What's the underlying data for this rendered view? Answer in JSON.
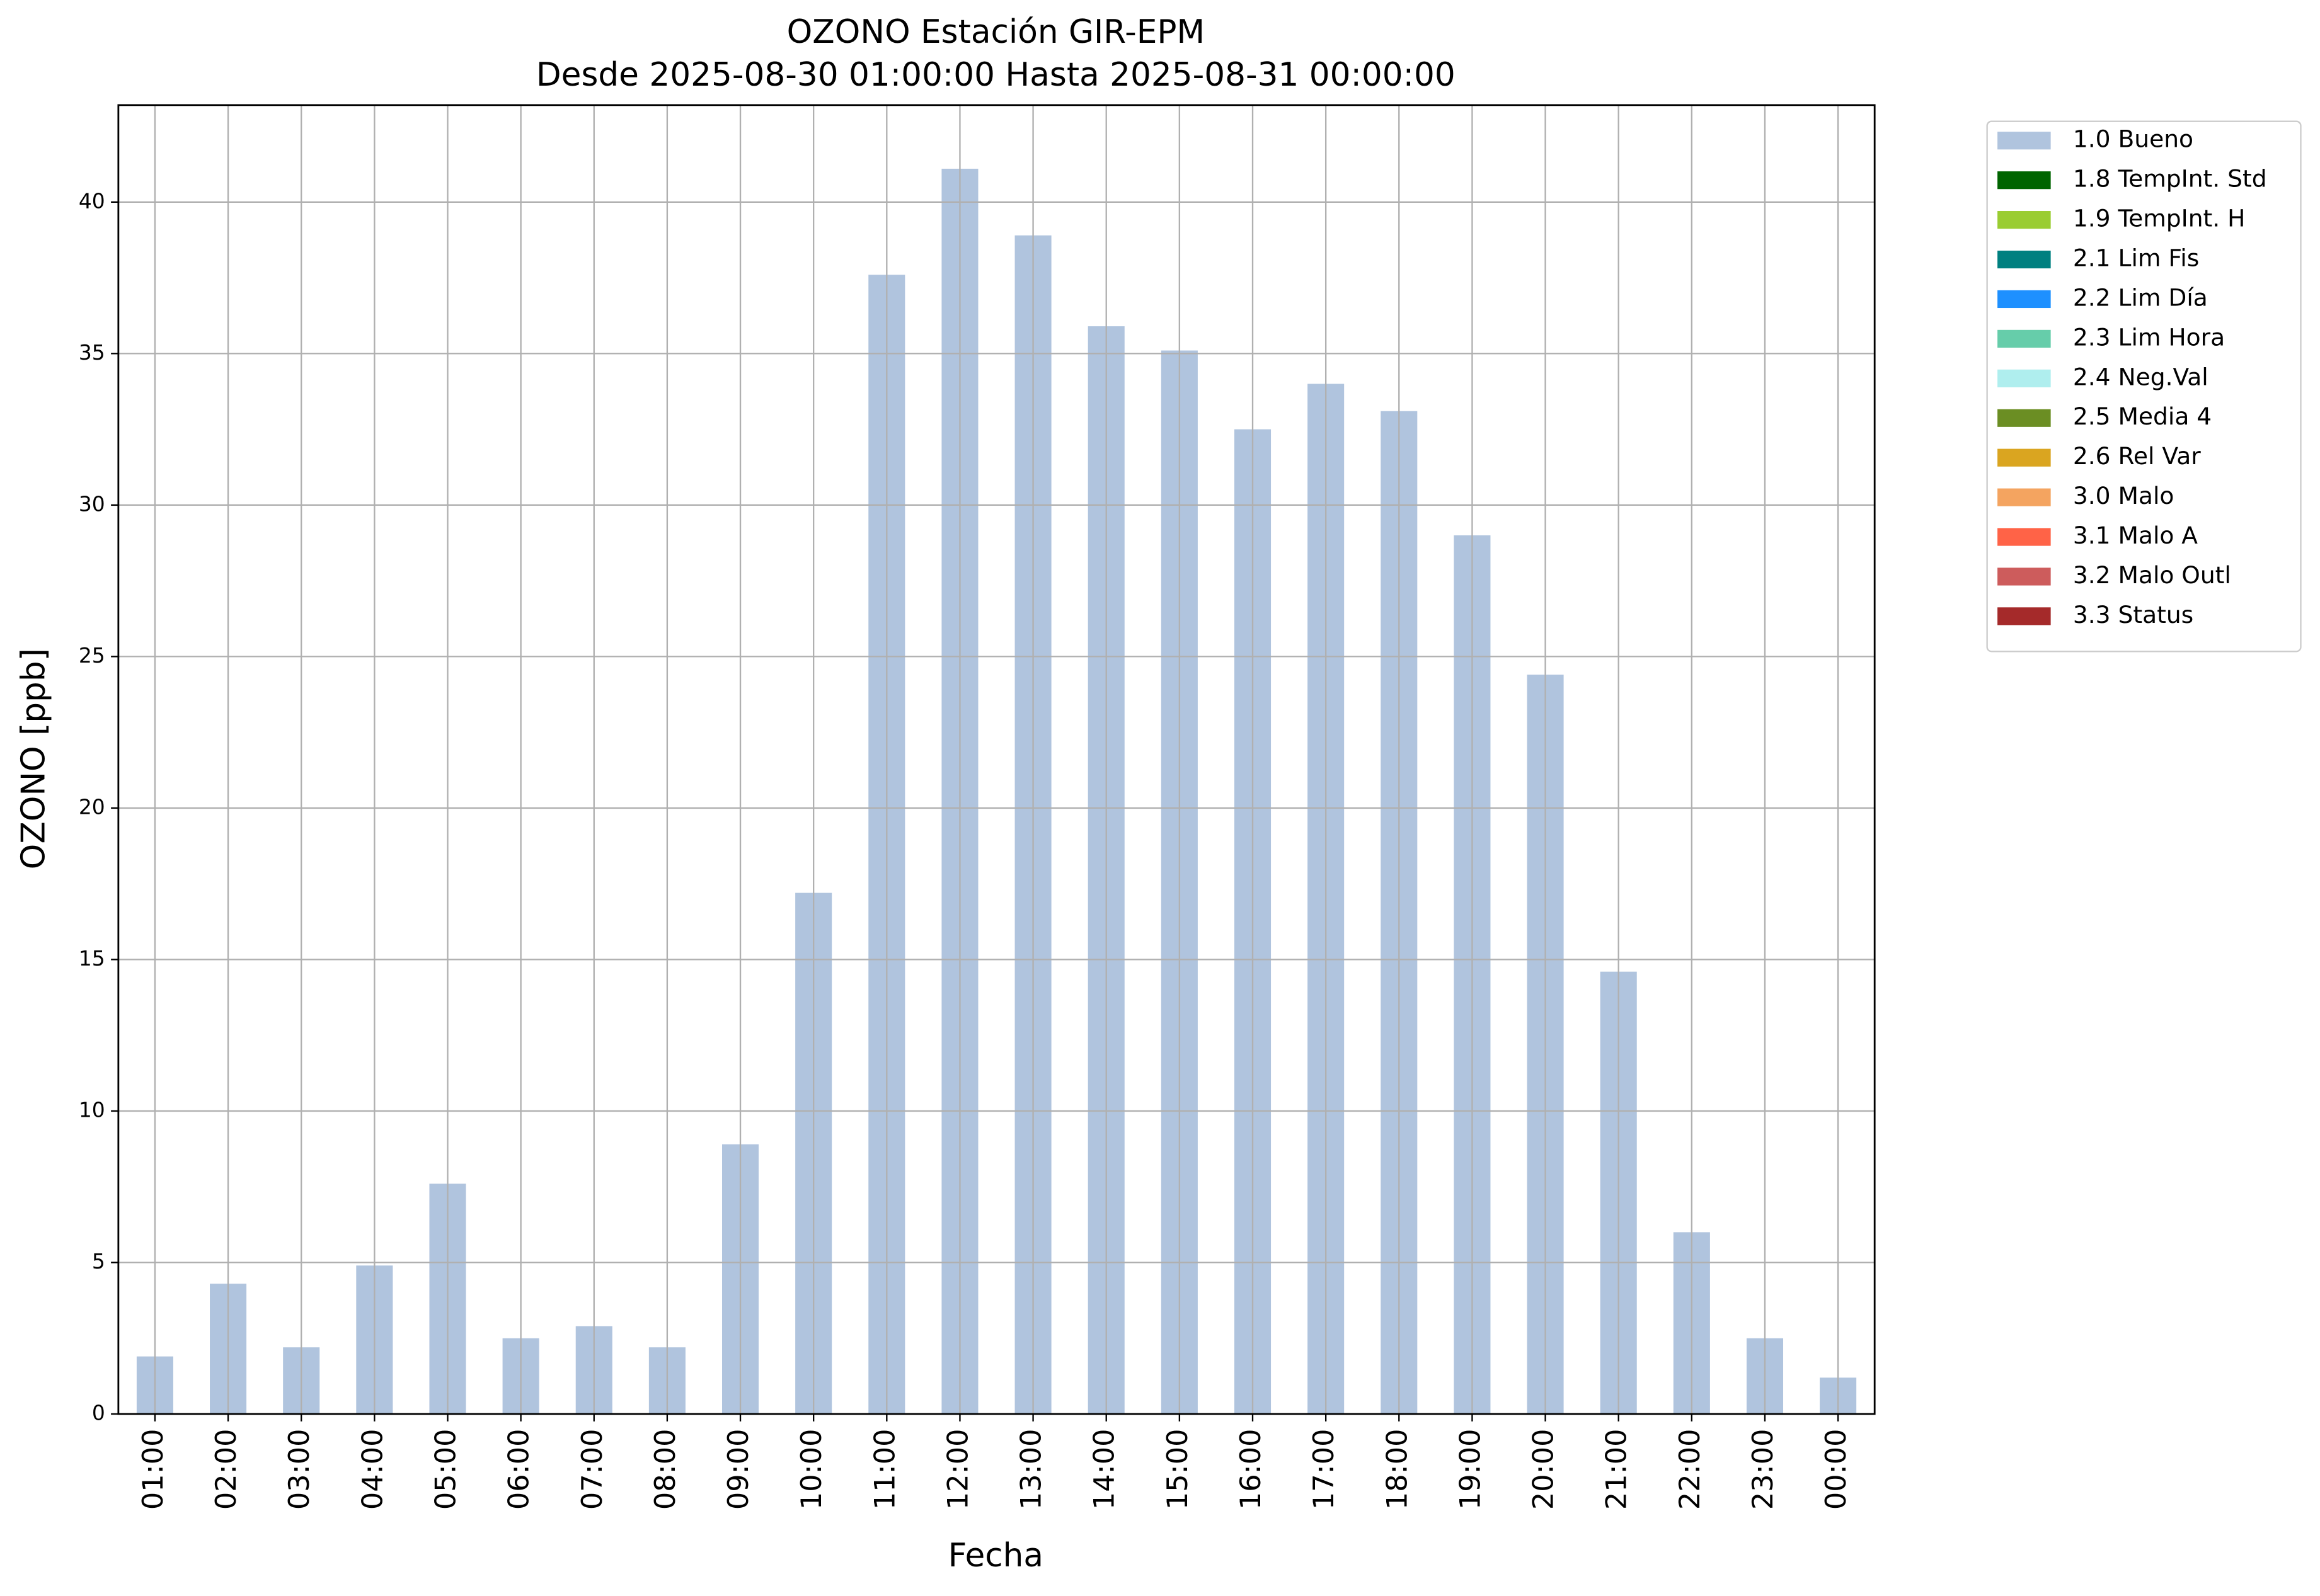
{
  "chart_data": {
    "type": "bar",
    "stacked": true,
    "title": "OZONO Estación GIR-EPM",
    "subtitle": "Desde 2025-08-30 01:00:00 Hasta 2025-08-31 00:00:00",
    "xlabel": "Fecha",
    "ylabel": "OZONO [ppb]",
    "categories": [
      "01:00",
      "02:00",
      "03:00",
      "04:00",
      "05:00",
      "06:00",
      "07:00",
      "08:00",
      "09:00",
      "10:00",
      "11:00",
      "12:00",
      "13:00",
      "14:00",
      "15:00",
      "16:00",
      "17:00",
      "18:00",
      "19:00",
      "20:00",
      "21:00",
      "22:00",
      "23:00",
      "00:00"
    ],
    "series": [
      {
        "name": "1.0 Bueno",
        "color": "#b0c4de",
        "values": [
          1.9,
          4.3,
          2.2,
          4.9,
          7.6,
          2.5,
          2.9,
          2.2,
          8.9,
          17.2,
          37.6,
          41.1,
          38.9,
          35.9,
          35.1,
          32.5,
          34.0,
          33.1,
          29.0,
          24.4,
          14.6,
          6.0,
          2.5,
          1.2
        ]
      },
      {
        "name": "1.8 TempInt. Std",
        "color": "#006400",
        "values": [
          null,
          null,
          null,
          null,
          null,
          null,
          null,
          null,
          null,
          null,
          null,
          null,
          null,
          null,
          null,
          null,
          null,
          null,
          null,
          null,
          null,
          null,
          null,
          null
        ]
      },
      {
        "name": "1.9 TempInt. H",
        "color": "#9acd32",
        "values": [
          null,
          null,
          null,
          null,
          null,
          null,
          null,
          null,
          null,
          null,
          null,
          null,
          null,
          null,
          null,
          null,
          null,
          null,
          null,
          null,
          null,
          null,
          null,
          null
        ]
      },
      {
        "name": "2.1 Lim Fis",
        "color": "#008080",
        "values": [
          null,
          null,
          null,
          null,
          null,
          null,
          null,
          null,
          null,
          null,
          null,
          null,
          null,
          null,
          null,
          null,
          null,
          null,
          null,
          null,
          null,
          null,
          null,
          null
        ]
      },
      {
        "name": "2.2 Lim Día",
        "color": "#1e90ff",
        "values": [
          null,
          null,
          null,
          null,
          null,
          null,
          null,
          null,
          null,
          null,
          null,
          null,
          null,
          null,
          null,
          null,
          null,
          null,
          null,
          null,
          null,
          null,
          null,
          null
        ]
      },
      {
        "name": "2.3 Lim Hora",
        "color": "#66cdaa",
        "values": [
          null,
          null,
          null,
          null,
          null,
          null,
          null,
          null,
          null,
          null,
          null,
          null,
          null,
          null,
          null,
          null,
          null,
          null,
          null,
          null,
          null,
          null,
          null,
          null
        ]
      },
      {
        "name": "2.4 Neg.Val",
        "color": "#afeeee",
        "values": [
          null,
          null,
          null,
          null,
          null,
          null,
          null,
          null,
          null,
          null,
          null,
          null,
          null,
          null,
          null,
          null,
          null,
          null,
          null,
          null,
          null,
          null,
          null,
          null
        ]
      },
      {
        "name": "2.5 Media 4",
        "color": "#6b8e23",
        "values": [
          null,
          null,
          null,
          null,
          null,
          null,
          null,
          null,
          null,
          null,
          null,
          null,
          null,
          null,
          null,
          null,
          null,
          null,
          null,
          null,
          null,
          null,
          null,
          null
        ]
      },
      {
        "name": "2.6 Rel Var",
        "color": "#daa520",
        "values": [
          null,
          null,
          null,
          null,
          null,
          null,
          null,
          null,
          null,
          null,
          null,
          null,
          null,
          null,
          null,
          null,
          null,
          null,
          null,
          null,
          null,
          null,
          null,
          null
        ]
      },
      {
        "name": "3.0 Malo",
        "color": "#f4a460",
        "values": [
          null,
          null,
          null,
          null,
          null,
          null,
          null,
          null,
          null,
          null,
          null,
          null,
          null,
          null,
          null,
          null,
          null,
          null,
          null,
          null,
          null,
          null,
          null,
          null
        ]
      },
      {
        "name": "3.1 Malo A",
        "color": "#ff6347",
        "values": [
          null,
          null,
          null,
          null,
          null,
          null,
          null,
          null,
          null,
          null,
          null,
          null,
          null,
          null,
          null,
          null,
          null,
          null,
          null,
          null,
          null,
          null,
          null,
          null
        ]
      },
      {
        "name": "3.2 Malo Outl",
        "color": "#cd5c5c",
        "values": [
          null,
          null,
          null,
          null,
          null,
          null,
          null,
          null,
          null,
          null,
          null,
          null,
          null,
          null,
          null,
          null,
          null,
          null,
          null,
          null,
          null,
          null,
          null,
          null
        ]
      },
      {
        "name": "3.3 Status",
        "color": "#a52a2a",
        "values": [
          null,
          null,
          null,
          null,
          null,
          null,
          null,
          null,
          null,
          null,
          null,
          null,
          null,
          null,
          null,
          null,
          null,
          null,
          null,
          null,
          null,
          null,
          null,
          null
        ]
      }
    ],
    "ylim": [
      0,
      43.2
    ],
    "yticks": [
      0,
      5,
      10,
      15,
      20,
      25,
      30,
      35,
      40
    ],
    "grid": true,
    "legend": "right"
  }
}
